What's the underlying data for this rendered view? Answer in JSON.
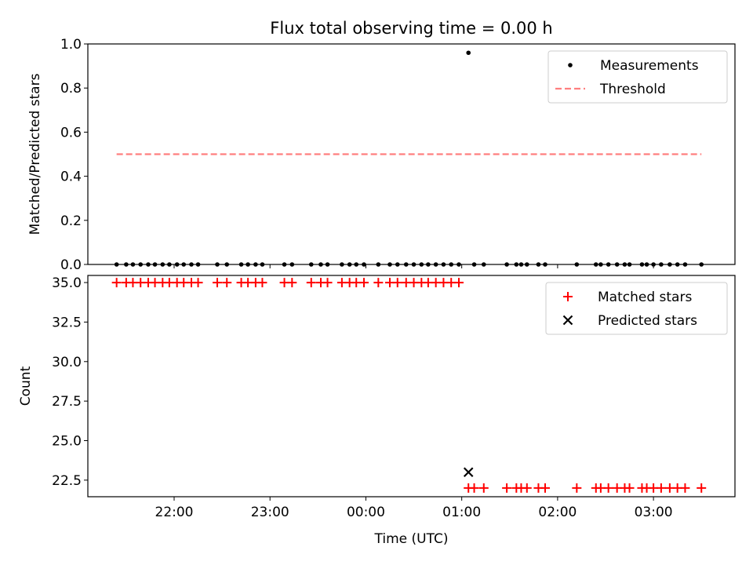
{
  "chart_data": [
    {
      "type": "scatter",
      "title": "Flux total observing time = 0.00 h",
      "xlabel": "",
      "ylabel": "Matched/Predicted stars",
      "ylim": [
        0,
        1.0
      ],
      "yticks": [
        "0.0",
        "0.2",
        "0.4",
        "0.6",
        "0.8",
        "1.0"
      ],
      "x_unit": "hours after 00:00 UTC",
      "xlim": [
        -2.9,
        3.85
      ],
      "legend_position": "top-right",
      "series": [
        {
          "name": "Measurements",
          "marker": "dot",
          "color": "#000000",
          "points": [
            {
              "x": -2.6,
              "y": 0
            },
            {
              "x": -2.5,
              "y": 0
            },
            {
              "x": -2.43,
              "y": 0
            },
            {
              "x": -2.35,
              "y": 0
            },
            {
              "x": -2.27,
              "y": 0
            },
            {
              "x": -2.2,
              "y": 0
            },
            {
              "x": -2.12,
              "y": 0
            },
            {
              "x": -2.05,
              "y": 0
            },
            {
              "x": -1.97,
              "y": 0
            },
            {
              "x": -1.9,
              "y": 0
            },
            {
              "x": -1.82,
              "y": 0
            },
            {
              "x": -1.75,
              "y": 0
            },
            {
              "x": -1.55,
              "y": 0
            },
            {
              "x": -1.45,
              "y": 0
            },
            {
              "x": -1.3,
              "y": 0
            },
            {
              "x": -1.23,
              "y": 0
            },
            {
              "x": -1.15,
              "y": 0
            },
            {
              "x": -1.08,
              "y": 0
            },
            {
              "x": -0.85,
              "y": 0
            },
            {
              "x": -0.77,
              "y": 0
            },
            {
              "x": -0.57,
              "y": 0
            },
            {
              "x": -0.47,
              "y": 0
            },
            {
              "x": -0.4,
              "y": 0
            },
            {
              "x": -0.25,
              "y": 0
            },
            {
              "x": -0.17,
              "y": 0
            },
            {
              "x": -0.1,
              "y": 0
            },
            {
              "x": -0.02,
              "y": 0
            },
            {
              "x": 0.13,
              "y": 0
            },
            {
              "x": 0.25,
              "y": 0
            },
            {
              "x": 0.33,
              "y": 0
            },
            {
              "x": 0.42,
              "y": 0
            },
            {
              "x": 0.5,
              "y": 0
            },
            {
              "x": 0.58,
              "y": 0
            },
            {
              "x": 0.65,
              "y": 0
            },
            {
              "x": 0.73,
              "y": 0
            },
            {
              "x": 0.81,
              "y": 0
            },
            {
              "x": 0.89,
              "y": 0
            },
            {
              "x": 0.97,
              "y": 0
            },
            {
              "x": 1.07,
              "y": 0.96
            },
            {
              "x": 1.13,
              "y": 0
            },
            {
              "x": 1.23,
              "y": 0
            },
            {
              "x": 1.47,
              "y": 0
            },
            {
              "x": 1.57,
              "y": 0
            },
            {
              "x": 1.62,
              "y": 0
            },
            {
              "x": 1.68,
              "y": 0
            },
            {
              "x": 1.8,
              "y": 0
            },
            {
              "x": 1.87,
              "y": 0
            },
            {
              "x": 2.2,
              "y": 0
            },
            {
              "x": 2.4,
              "y": 0
            },
            {
              "x": 2.45,
              "y": 0
            },
            {
              "x": 2.53,
              "y": 0
            },
            {
              "x": 2.62,
              "y": 0
            },
            {
              "x": 2.7,
              "y": 0
            },
            {
              "x": 2.75,
              "y": 0
            },
            {
              "x": 2.88,
              "y": 0
            },
            {
              "x": 2.93,
              "y": 0
            },
            {
              "x": 3.0,
              "y": 0
            },
            {
              "x": 3.08,
              "y": 0
            },
            {
              "x": 3.17,
              "y": 0
            },
            {
              "x": 3.25,
              "y": 0
            },
            {
              "x": 3.33,
              "y": 0
            },
            {
              "x": 3.5,
              "y": 0
            }
          ]
        },
        {
          "name": "Threshold",
          "marker": "dashed-line",
          "color": "#ff7f7f",
          "points": [
            {
              "x": -2.6,
              "y": 0.5
            },
            {
              "x": 3.5,
              "y": 0.5
            }
          ]
        }
      ]
    },
    {
      "type": "scatter",
      "title": "",
      "xlabel": "Time (UTC)",
      "ylabel": "Count",
      "ylim": [
        21.45,
        35.45
      ],
      "yticks": [
        "22.5",
        "25.0",
        "27.5",
        "30.0",
        "32.5",
        "35.0"
      ],
      "x_unit": "hours after 00:00 UTC",
      "xlim": [
        -2.9,
        3.85
      ],
      "xticks": [
        {
          "x": -2,
          "label": "22:00"
        },
        {
          "x": -1,
          "label": "23:00"
        },
        {
          "x": 0,
          "label": "00:00"
        },
        {
          "x": 1,
          "label": "01:00"
        },
        {
          "x": 2,
          "label": "02:00"
        },
        {
          "x": 3,
          "label": "03:00"
        }
      ],
      "legend_position": "top-right",
      "series": [
        {
          "name": "Matched stars",
          "marker": "plus",
          "color": "#ff0000",
          "points": [
            {
              "x": -2.6,
              "y": 35
            },
            {
              "x": -2.5,
              "y": 35
            },
            {
              "x": -2.43,
              "y": 35
            },
            {
              "x": -2.35,
              "y": 35
            },
            {
              "x": -2.27,
              "y": 35
            },
            {
              "x": -2.2,
              "y": 35
            },
            {
              "x": -2.12,
              "y": 35
            },
            {
              "x": -2.05,
              "y": 35
            },
            {
              "x": -1.97,
              "y": 35
            },
            {
              "x": -1.9,
              "y": 35
            },
            {
              "x": -1.82,
              "y": 35
            },
            {
              "x": -1.75,
              "y": 35
            },
            {
              "x": -1.55,
              "y": 35
            },
            {
              "x": -1.45,
              "y": 35
            },
            {
              "x": -1.3,
              "y": 35
            },
            {
              "x": -1.23,
              "y": 35
            },
            {
              "x": -1.15,
              "y": 35
            },
            {
              "x": -1.08,
              "y": 35
            },
            {
              "x": -0.85,
              "y": 35
            },
            {
              "x": -0.77,
              "y": 35
            },
            {
              "x": -0.57,
              "y": 35
            },
            {
              "x": -0.47,
              "y": 35
            },
            {
              "x": -0.4,
              "y": 35
            },
            {
              "x": -0.25,
              "y": 35
            },
            {
              "x": -0.17,
              "y": 35
            },
            {
              "x": -0.1,
              "y": 35
            },
            {
              "x": -0.02,
              "y": 35
            },
            {
              "x": 0.13,
              "y": 35
            },
            {
              "x": 0.25,
              "y": 35
            },
            {
              "x": 0.33,
              "y": 35
            },
            {
              "x": 0.42,
              "y": 35
            },
            {
              "x": 0.5,
              "y": 35
            },
            {
              "x": 0.58,
              "y": 35
            },
            {
              "x": 0.65,
              "y": 35
            },
            {
              "x": 0.73,
              "y": 35
            },
            {
              "x": 0.81,
              "y": 35
            },
            {
              "x": 0.89,
              "y": 35
            },
            {
              "x": 0.97,
              "y": 35
            },
            {
              "x": 1.07,
              "y": 22
            },
            {
              "x": 1.13,
              "y": 22
            },
            {
              "x": 1.23,
              "y": 22
            },
            {
              "x": 1.47,
              "y": 22
            },
            {
              "x": 1.57,
              "y": 22
            },
            {
              "x": 1.62,
              "y": 22
            },
            {
              "x": 1.68,
              "y": 22
            },
            {
              "x": 1.8,
              "y": 22
            },
            {
              "x": 1.87,
              "y": 22
            },
            {
              "x": 2.2,
              "y": 22
            },
            {
              "x": 2.4,
              "y": 22
            },
            {
              "x": 2.45,
              "y": 22
            },
            {
              "x": 2.53,
              "y": 22
            },
            {
              "x": 2.62,
              "y": 22
            },
            {
              "x": 2.7,
              "y": 22
            },
            {
              "x": 2.75,
              "y": 22
            },
            {
              "x": 2.88,
              "y": 22
            },
            {
              "x": 2.93,
              "y": 22
            },
            {
              "x": 3.0,
              "y": 22
            },
            {
              "x": 3.08,
              "y": 22
            },
            {
              "x": 3.17,
              "y": 22
            },
            {
              "x": 3.25,
              "y": 22
            },
            {
              "x": 3.33,
              "y": 22
            },
            {
              "x": 3.5,
              "y": 22
            }
          ]
        },
        {
          "name": "Predicted stars",
          "marker": "x",
          "color": "#000000",
          "points": [
            {
              "x": 1.07,
              "y": 23
            }
          ]
        }
      ]
    }
  ]
}
